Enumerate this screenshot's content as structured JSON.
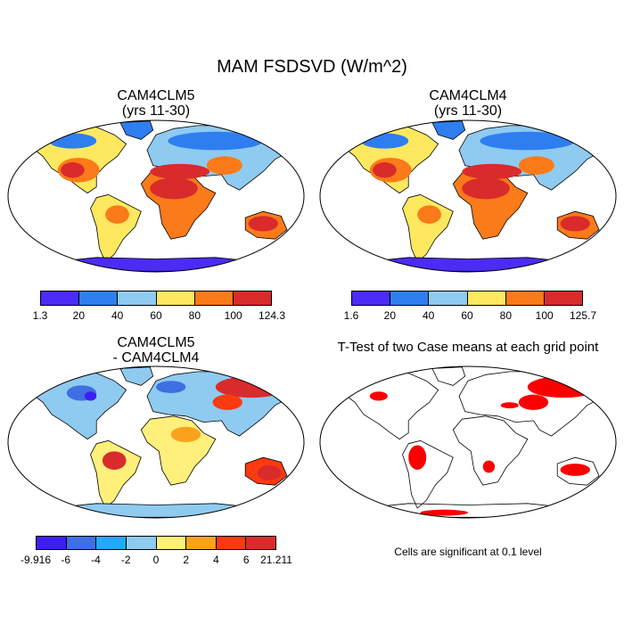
{
  "title": "MAM FSDSVD (W/m^2)",
  "chart_data": [
    {
      "type": "heatmap",
      "map": "world",
      "title_line1": "CAM4CLM5",
      "title_line2": "(yrs 11-30)",
      "colorbar": {
        "colors": [
          "#4b2cf5",
          "#2f7ef0",
          "#8fcaf0",
          "#fde85f",
          "#fb7a19",
          "#d92b2b"
        ],
        "ticks": [
          "1.3",
          "20",
          "40",
          "60",
          "80",
          "100",
          "124.3"
        ]
      }
    },
    {
      "type": "heatmap",
      "map": "world",
      "title_line1": "CAM4CLM4",
      "title_line2": "(yrs 11-30)",
      "colorbar": {
        "colors": [
          "#4b2cf5",
          "#2f7ef0",
          "#8fcaf0",
          "#fde85f",
          "#fb7a19",
          "#d92b2b"
        ],
        "ticks": [
          "1.6",
          "20",
          "40",
          "60",
          "80",
          "100",
          "125.7"
        ]
      }
    },
    {
      "type": "heatmap",
      "map": "world",
      "title_line1": "CAM4CLM5",
      "title_line2": "- CAM4CLM4",
      "colorbar": {
        "colors": [
          "#3c1ff0",
          "#3e6fe3",
          "#27a8f5",
          "#8fcaf0",
          "#fef07a",
          "#f9a31c",
          "#fb3a10",
          "#d92b2b"
        ],
        "ticks": [
          "-9.916",
          "-6",
          "-4",
          "-2",
          "0",
          "2",
          "4",
          "6",
          "21.211"
        ]
      }
    },
    {
      "type": "heatmap",
      "map": "world",
      "title": "T-Test of two Case means at each grid point",
      "note": "Cells are significant at 0.1 level"
    }
  ]
}
